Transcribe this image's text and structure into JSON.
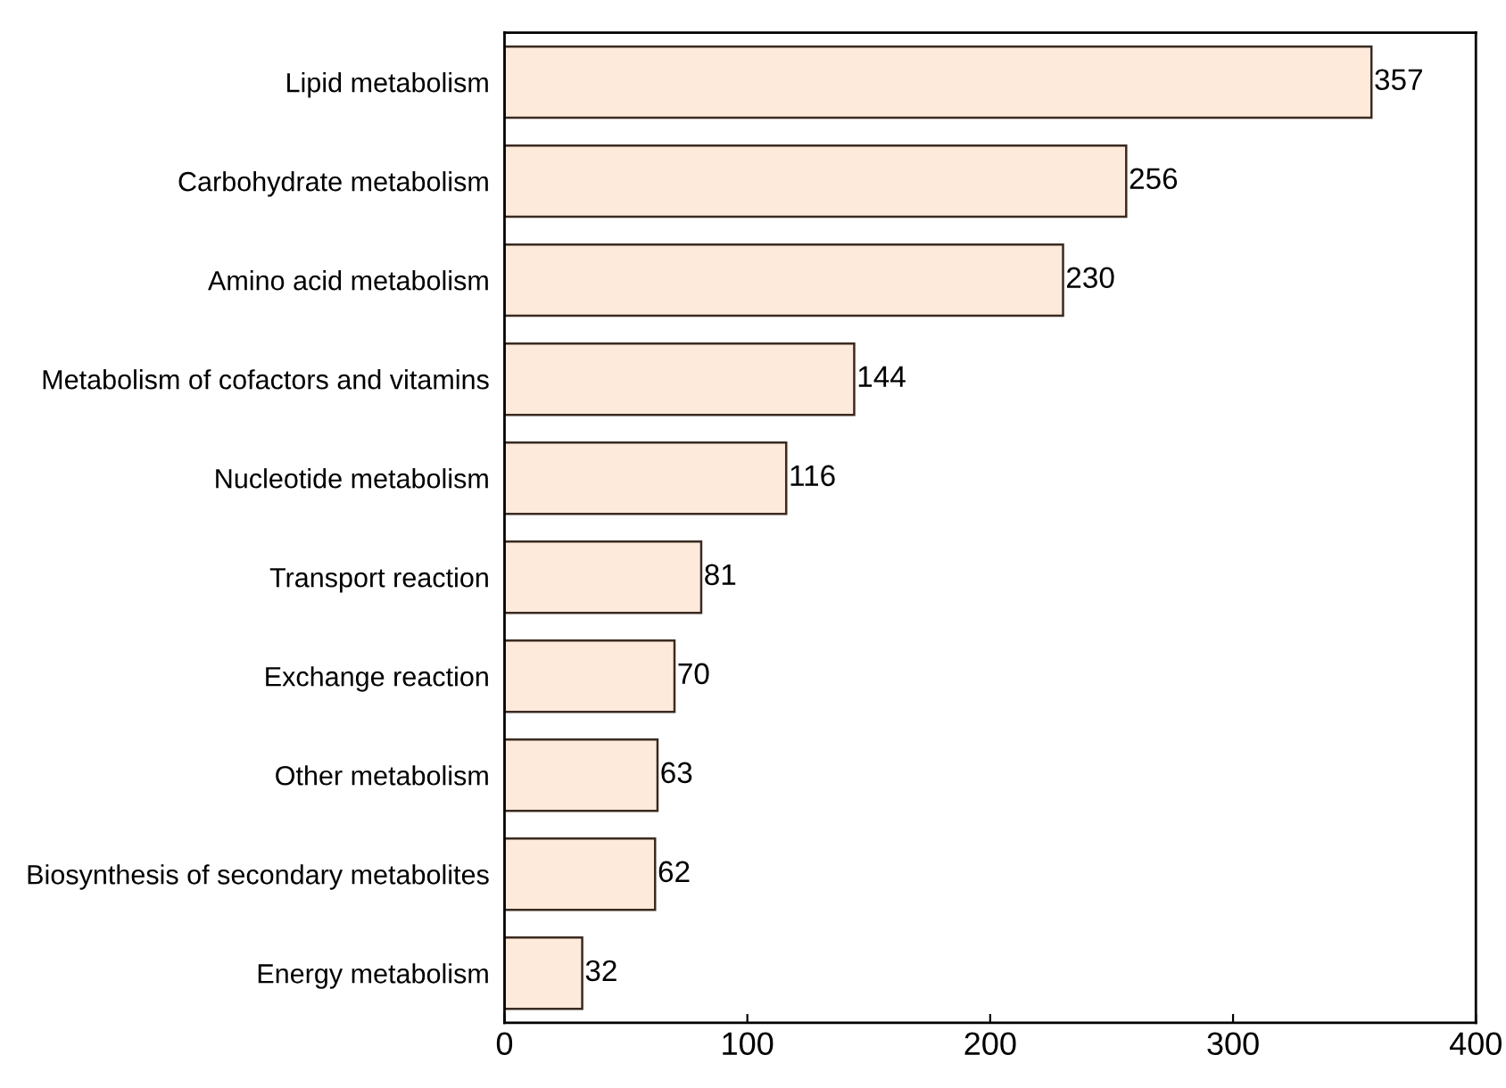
{
  "chart_data": {
    "type": "bar",
    "orientation": "horizontal",
    "categories": [
      "Lipid metabolism",
      "Carbohydrate metabolism",
      "Amino acid metabolism",
      "Metabolism of cofactors and vitamins",
      "Nucleotide metabolism",
      "Transport reaction",
      "Exchange reaction",
      "Other metabolism",
      "Biosynthesis of secondary metabolites",
      "Energy metabolism"
    ],
    "values": [
      357,
      256,
      230,
      144,
      116,
      81,
      70,
      63,
      62,
      32
    ],
    "color": "#fdeadb",
    "xlim": [
      0,
      400
    ],
    "xticks": [
      0,
      100,
      200,
      300,
      400
    ],
    "data_labels": true
  }
}
